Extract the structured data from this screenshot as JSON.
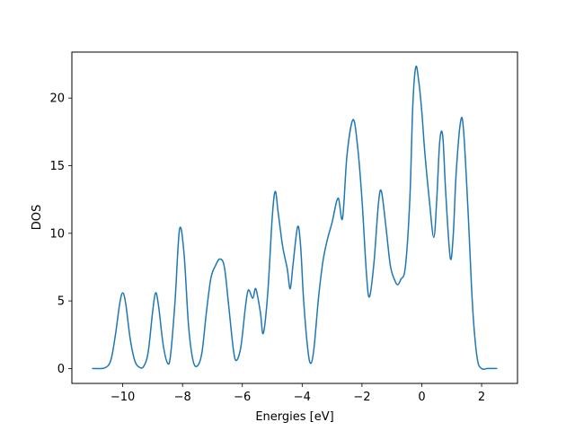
{
  "chart_data": {
    "type": "line",
    "title": "",
    "xlabel": "Energies [eV]",
    "ylabel": "DOS",
    "xlim": [
      -11.7,
      3.2
    ],
    "ylim": [
      -1.1,
      23.4
    ],
    "grid": false,
    "legend": "none",
    "x_ticks": [
      -10,
      -8,
      -6,
      -4,
      -2,
      0,
      2
    ],
    "x_tick_labels": [
      "−10",
      "−8",
      "−6",
      "−4",
      "−2",
      "0",
      "2"
    ],
    "y_ticks": [
      0,
      5,
      10,
      15,
      20
    ],
    "y_tick_labels": [
      "0",
      "5",
      "10",
      "15",
      "20"
    ],
    "line_color": "#1f77b4",
    "series": [
      {
        "values": [
          [
            -11.0,
            0.0
          ],
          [
            -10.6,
            0.05
          ],
          [
            -10.4,
            0.6
          ],
          [
            -10.25,
            2.4
          ],
          [
            -10.1,
            4.8
          ],
          [
            -10.0,
            5.6
          ],
          [
            -9.9,
            4.8
          ],
          [
            -9.75,
            2.2
          ],
          [
            -9.6,
            0.6
          ],
          [
            -9.45,
            0.1
          ],
          [
            -9.3,
            0.15
          ],
          [
            -9.15,
            1.2
          ],
          [
            -9.0,
            4.2
          ],
          [
            -8.9,
            5.6
          ],
          [
            -8.8,
            4.6
          ],
          [
            -8.65,
            1.8
          ],
          [
            -8.5,
            0.4
          ],
          [
            -8.4,
            1.0
          ],
          [
            -8.25,
            5.0
          ],
          [
            -8.1,
            10.3
          ],
          [
            -7.95,
            8.5
          ],
          [
            -7.8,
            3.2
          ],
          [
            -7.65,
            0.6
          ],
          [
            -7.5,
            0.2
          ],
          [
            -7.35,
            1.2
          ],
          [
            -7.2,
            4.2
          ],
          [
            -7.05,
            6.7
          ],
          [
            -6.9,
            7.6
          ],
          [
            -6.75,
            8.1
          ],
          [
            -6.6,
            7.5
          ],
          [
            -6.45,
            4.5
          ],
          [
            -6.3,
            1.4
          ],
          [
            -6.2,
            0.6
          ],
          [
            -6.05,
            1.6
          ],
          [
            -5.9,
            4.5
          ],
          [
            -5.8,
            5.8
          ],
          [
            -5.65,
            5.2
          ],
          [
            -5.55,
            5.9
          ],
          [
            -5.4,
            4.2
          ],
          [
            -5.3,
            2.6
          ],
          [
            -5.15,
            5.6
          ],
          [
            -5.0,
            11.2
          ],
          [
            -4.9,
            13.1
          ],
          [
            -4.8,
            11.5
          ],
          [
            -4.65,
            9.0
          ],
          [
            -4.5,
            7.4
          ],
          [
            -4.4,
            5.9
          ],
          [
            -4.3,
            7.8
          ],
          [
            -4.15,
            10.5
          ],
          [
            -4.05,
            9.0
          ],
          [
            -3.95,
            5.0
          ],
          [
            -3.8,
            1.2
          ],
          [
            -3.7,
            0.4
          ],
          [
            -3.6,
            1.6
          ],
          [
            -3.45,
            5.3
          ],
          [
            -3.3,
            8.0
          ],
          [
            -3.15,
            9.6
          ],
          [
            -3.0,
            10.8
          ],
          [
            -2.8,
            12.6
          ],
          [
            -2.65,
            11.1
          ],
          [
            -2.5,
            15.8
          ],
          [
            -2.3,
            18.4
          ],
          [
            -2.15,
            16.5
          ],
          [
            -2.0,
            12.5
          ],
          [
            -1.85,
            7.0
          ],
          [
            -1.75,
            5.3
          ],
          [
            -1.6,
            7.8
          ],
          [
            -1.45,
            12.2
          ],
          [
            -1.35,
            13.1
          ],
          [
            -1.2,
            10.5
          ],
          [
            -1.05,
            7.6
          ],
          [
            -0.9,
            6.5
          ],
          [
            -0.8,
            6.2
          ],
          [
            -0.7,
            6.6
          ],
          [
            -0.55,
            7.5
          ],
          [
            -0.4,
            12.5
          ],
          [
            -0.3,
            19.5
          ],
          [
            -0.2,
            22.3
          ],
          [
            -0.1,
            21.2
          ],
          [
            0.0,
            19.0
          ],
          [
            0.1,
            16.0
          ],
          [
            0.25,
            12.5
          ],
          [
            0.4,
            9.7
          ],
          [
            0.5,
            12.5
          ],
          [
            0.6,
            16.8
          ],
          [
            0.7,
            17.2
          ],
          [
            0.8,
            13.0
          ],
          [
            0.95,
            8.2
          ],
          [
            1.05,
            9.8
          ],
          [
            1.15,
            14.5
          ],
          [
            1.3,
            18.3
          ],
          [
            1.4,
            17.5
          ],
          [
            1.55,
            11.5
          ],
          [
            1.7,
            4.5
          ],
          [
            1.85,
            0.8
          ],
          [
            2.0,
            0.0
          ],
          [
            2.2,
            0.0
          ],
          [
            2.5,
            0.0
          ]
        ]
      }
    ]
  }
}
